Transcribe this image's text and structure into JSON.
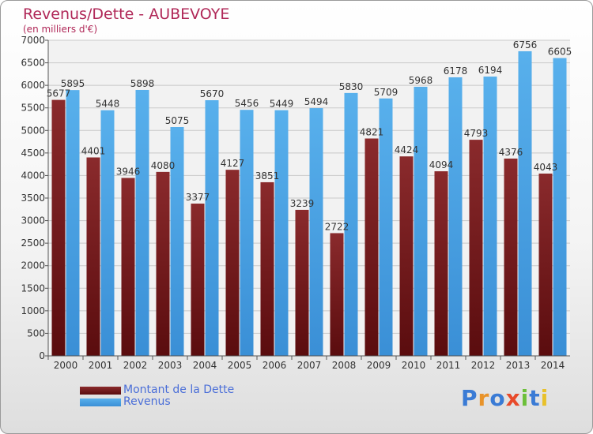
{
  "header": {
    "title": "Revenus/Dette - AUBEVOYE",
    "subtitle": "(en milliers d'€)"
  },
  "legend": {
    "debt_label": "Montant de la Dette",
    "revenue_label": "Revenus"
  },
  "logo": {
    "text": "Proxiti"
  },
  "colors": {
    "debt": "#7a1f22",
    "revenue": "#4ea3e4",
    "title": "#b02858",
    "legend_text": "#4a6ed8"
  },
  "chart_data": {
    "type": "bar",
    "title": "Revenus/Dette - AUBEVOYE",
    "ylabel": "(en milliers d'€)",
    "xlabel": "",
    "ylim": [
      0,
      7000
    ],
    "ytick_step": 500,
    "grid": true,
    "legend_placement": "bottom-left",
    "categories": [
      "2000",
      "2001",
      "2002",
      "2003",
      "2004",
      "2005",
      "2006",
      "2007",
      "2008",
      "2009",
      "2010",
      "2011",
      "2012",
      "2013",
      "2014"
    ],
    "series": [
      {
        "name": "Montant de la Dette",
        "values": [
          5677,
          4401,
          3946,
          4080,
          3377,
          4127,
          3851,
          3239,
          2722,
          4821,
          4424,
          4094,
          4793,
          4376,
          4043
        ],
        "labels": [
          "5677",
          "4401",
          "3946",
          "4080",
          "3377",
          "4127",
          "3851",
          "3239",
          "2722",
          "4821",
          "4424",
          "4094",
          "4793",
          "4376",
          "4043"
        ]
      },
      {
        "name": "Revenus",
        "values": [
          5895,
          5448,
          5898,
          5075,
          5670,
          5456,
          5449,
          5494,
          5830,
          5709,
          5968,
          6178,
          6194,
          6756,
          6605
        ],
        "labels": [
          "5895",
          "5448",
          "5898",
          "5075",
          "5670",
          "5456",
          "5449",
          "5494",
          "5830",
          "5709",
          "5968",
          "6178",
          "6194",
          "6756",
          "6605"
        ]
      }
    ]
  }
}
